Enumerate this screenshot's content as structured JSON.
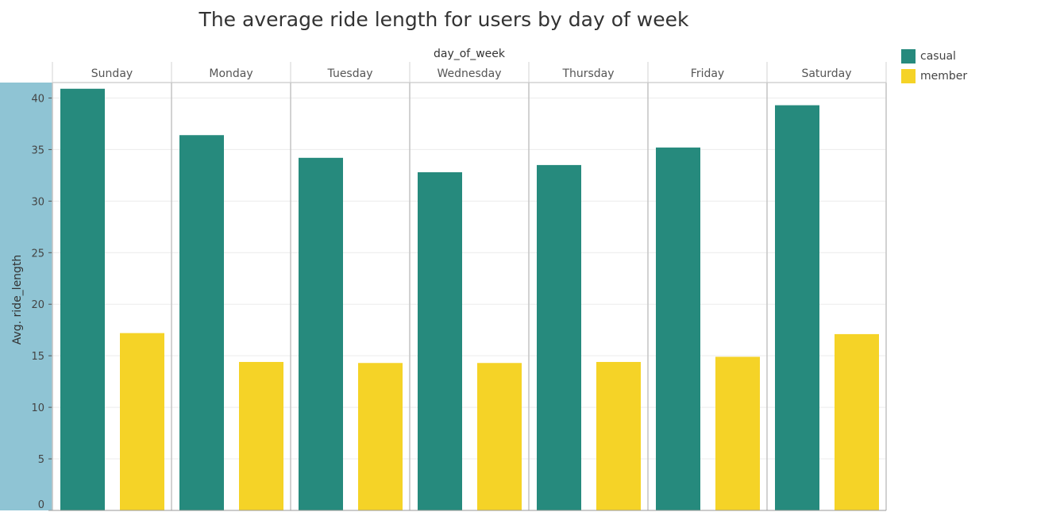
{
  "colors": {
    "casual": "#268a7d",
    "member": "#f5d327",
    "axis_band": "#8fc4d4"
  },
  "legend": {
    "items": [
      {
        "label": "casual",
        "color": "#268a7d"
      },
      {
        "label": "member",
        "color": "#f5d327"
      }
    ]
  },
  "chart_data": {
    "type": "bar",
    "title": "The average ride length for users by day of week",
    "column_header": "day_of_week",
    "xlabel": "",
    "ylabel": "Avg. ride_length",
    "ylim": [
      0,
      41.5
    ],
    "yticks": [
      0,
      5,
      10,
      15,
      20,
      25,
      30,
      35,
      40
    ],
    "grid": true,
    "legend_position": "top-right",
    "categories": [
      "Sunday",
      "Monday",
      "Tuesday",
      "Wednesday",
      "Thursday",
      "Friday",
      "Saturday"
    ],
    "series": [
      {
        "name": "casual",
        "values": [
          40.9,
          36.4,
          34.2,
          32.8,
          33.5,
          35.2,
          39.3
        ]
      },
      {
        "name": "member",
        "values": [
          17.2,
          14.4,
          14.3,
          14.3,
          14.4,
          14.9,
          17.1
        ]
      }
    ]
  }
}
